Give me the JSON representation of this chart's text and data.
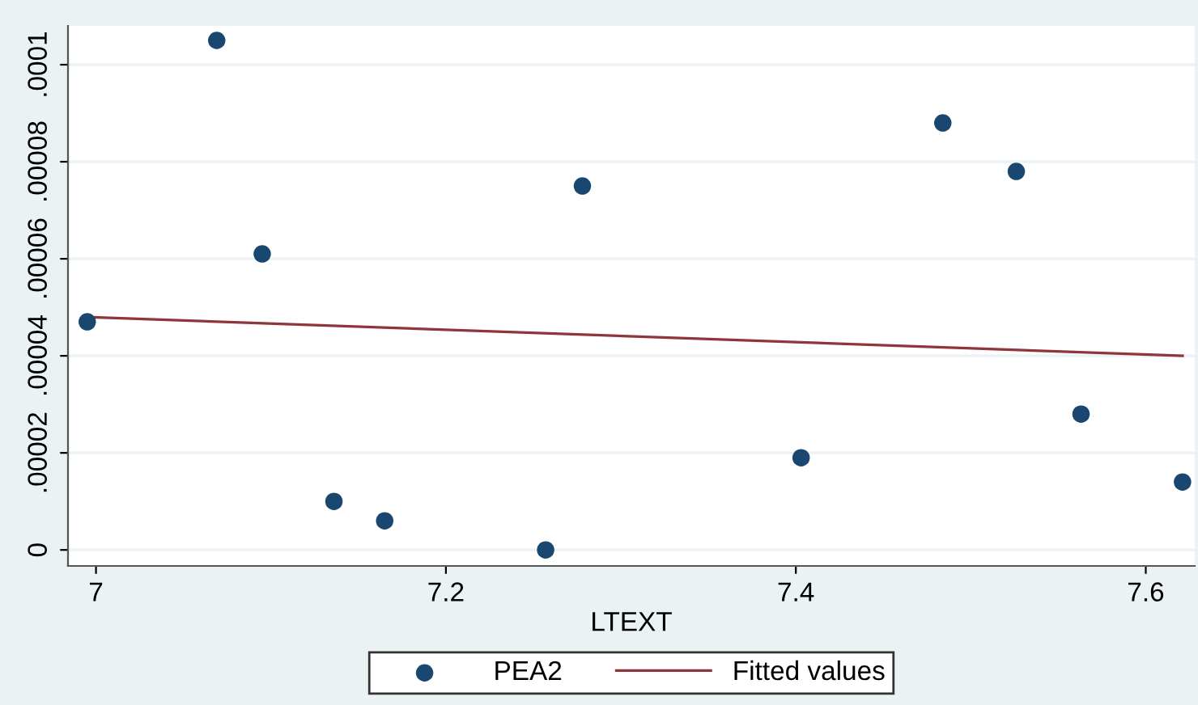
{
  "chart_data": {
    "type": "scatter",
    "xlabel": "LTEXT",
    "series": [
      {
        "name": "PEA2",
        "color": "#1a476f",
        "marker": "circle",
        "x": [
          6.995,
          7.069,
          7.095,
          7.136,
          7.165,
          7.257,
          7.278,
          7.403,
          7.484,
          7.526,
          7.563,
          7.621
        ],
        "values": [
          4.7e-05,
          0.000105,
          6.1e-05,
          1e-05,
          6e-06,
          0.0,
          7.5e-05,
          1.9e-05,
          8.8e-05,
          7.8e-05,
          2.8e-05,
          1.4e-05
        ]
      },
      {
        "name": "Fitted values",
        "type": "line",
        "color": "#90353b",
        "x": [
          6.995,
          7.621
        ],
        "values": [
          4.8e-05,
          4e-05
        ]
      }
    ],
    "xlim": [
      6.984,
      7.628
    ],
    "xticks": [
      7,
      7.2,
      7.4,
      7.6
    ],
    "ylim": [
      -3.3e-06,
      0.000108
    ],
    "yticks": [
      {
        "value": 0,
        "label": "0"
      },
      {
        "value": 2e-05,
        "label": ".00002"
      },
      {
        "value": 4e-05,
        "label": ".00004"
      },
      {
        "value": 6e-05,
        "label": ".00006"
      },
      {
        "value": 8e-05,
        "label": ".00008"
      },
      {
        "value": 0.0001,
        "label": ".0001"
      }
    ],
    "grid": "y",
    "legend": "bottom"
  }
}
